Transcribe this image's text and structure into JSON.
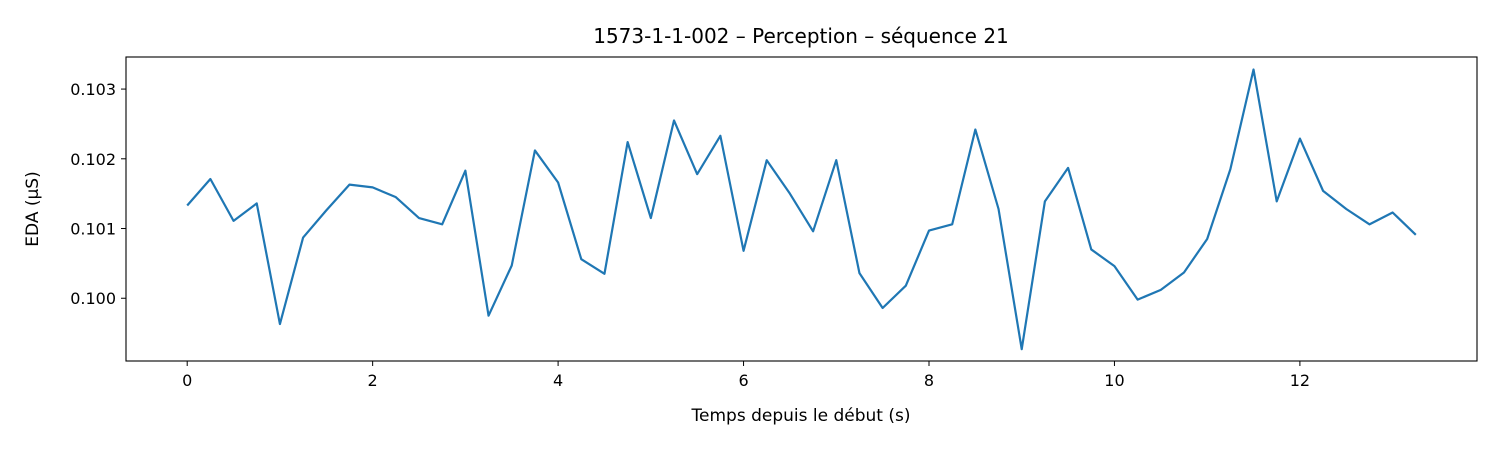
{
  "chart_data": {
    "type": "line",
    "title": "1573-1-1-002 – Perception – séquence 21",
    "xlabel": "Temps depuis le début (s)",
    "ylabel": "EDA (µS)",
    "xlim": [
      -0.66,
      13.91
    ],
    "ylim": [
      0.0991,
      0.10346
    ],
    "x_ticks": [
      0,
      2,
      4,
      6,
      8,
      10,
      12
    ],
    "y_ticks": [
      0.1,
      0.101,
      0.102,
      0.103
    ],
    "y_tick_labels": [
      "0.100",
      "0.101",
      "0.102",
      "0.103"
    ],
    "grid": false,
    "series": [
      {
        "color": "#1f77b4",
        "x": [
          0,
          0.25,
          0.5,
          0.75,
          1.0,
          1.25,
          1.5,
          1.75,
          2.0,
          2.25,
          2.5,
          2.75,
          3.0,
          3.25,
          3.5,
          3.75,
          4.0,
          4.25,
          4.5,
          4.75,
          5.0,
          5.25,
          5.5,
          5.75,
          6.0,
          6.25,
          6.5,
          6.75,
          7.0,
          7.25,
          7.5,
          7.75,
          8.0,
          8.25,
          8.5,
          8.75,
          9.0,
          9.25,
          9.5,
          9.75,
          10.0,
          10.25,
          10.5,
          10.75,
          11.0,
          11.25,
          11.5,
          11.75,
          12.0,
          12.25,
          12.5,
          12.75,
          13.0,
          13.25
        ],
        "y": [
          0.10133,
          0.10171,
          0.10111,
          0.10136,
          0.09963,
          0.10087,
          0.10126,
          0.10163,
          0.10159,
          0.10145,
          0.10115,
          0.10106,
          0.10183,
          0.09975,
          0.10047,
          0.10212,
          0.10166,
          0.10056,
          0.10035,
          0.10224,
          0.10115,
          0.10255,
          0.10178,
          0.10233,
          0.10068,
          0.10198,
          0.1015,
          0.10096,
          0.10198,
          0.10036,
          0.09986,
          0.10018,
          0.10097,
          0.10106,
          0.10242,
          0.10128,
          0.09927,
          0.10139,
          0.10187,
          0.1007,
          0.10046,
          0.09998,
          0.10012,
          0.10037,
          0.10085,
          0.10185,
          0.10328,
          0.10139,
          0.10229,
          0.10154,
          0.10128,
          0.10106,
          0.10123,
          0.10091
        ]
      }
    ]
  }
}
